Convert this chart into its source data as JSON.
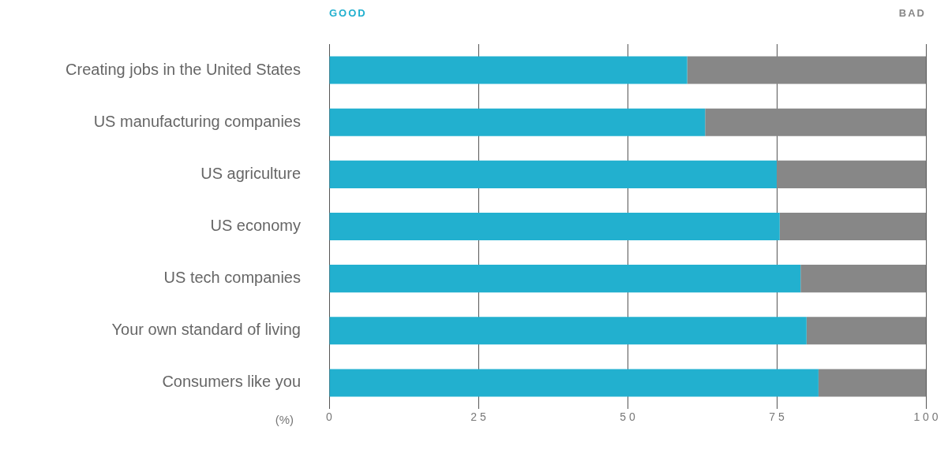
{
  "chart_data": {
    "type": "bar",
    "orientation": "horizontal",
    "stacked": true,
    "categories": [
      "Creating jobs in the United States",
      "US manufacturing companies",
      "US agriculture",
      "US economy",
      "US tech companies",
      "Your own standard of living",
      "Consumers like you"
    ],
    "series": [
      {
        "name": "GOOD",
        "color": "#22b0cf",
        "values": [
          60,
          63,
          75,
          75.5,
          79,
          80,
          82
        ]
      },
      {
        "name": "BAD",
        "color": "#878787",
        "values": [
          40,
          37,
          25,
          24.5,
          21,
          20,
          18
        ]
      }
    ],
    "xlabel": "(%)",
    "xlim": [
      0,
      100
    ],
    "xticks": [
      0,
      25,
      50,
      75,
      100
    ],
    "grid": "x",
    "legend": "top"
  }
}
